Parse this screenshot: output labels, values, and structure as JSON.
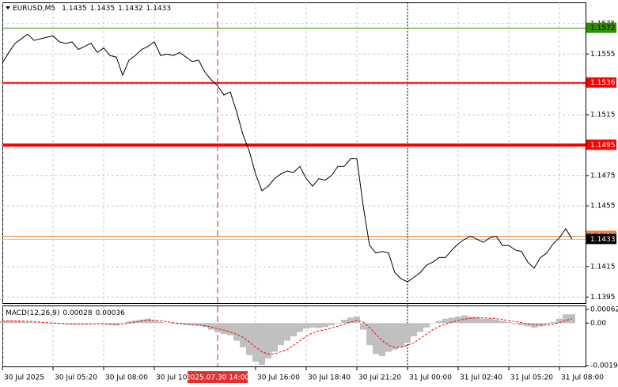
{
  "chart_data": {
    "type": "line",
    "title": "EURUSD,M5",
    "ohlc": [
      1.1435,
      1.1435,
      1.1432,
      1.1433
    ],
    "color": "#000000",
    "grid": true,
    "categories": [
      "30 Jul 2025",
      null,
      null,
      null,
      null,
      null,
      null,
      null,
      "30 Jul 05:20",
      null,
      null,
      null,
      null,
      null,
      null,
      null,
      "30 Jul 08:00",
      null,
      null,
      null,
      null,
      null,
      null,
      null,
      "30 Jul 10:40",
      null,
      null,
      null,
      null,
      null,
      null,
      null,
      null,
      null,
      "2025.07.30 14:00",
      null,
      null,
      null,
      null,
      null,
      "30 Jul 16:00",
      null,
      null,
      null,
      null,
      null,
      null,
      null,
      "30 Jul 18:40",
      null,
      null,
      null,
      null,
      null,
      null,
      null,
      "30 Jul 21:20",
      null,
      null,
      null,
      null,
      null,
      null,
      null,
      "31 Jul 00:00",
      null,
      null,
      null,
      null,
      null,
      null,
      null,
      "31 Jul 02:40",
      null,
      null,
      null,
      null,
      null,
      null,
      null,
      "31 Jul 05:20",
      null,
      null,
      null,
      null,
      null,
      null,
      null,
      "31 Jul 08:00",
      null,
      null
    ],
    "values": [
      1.1549,
      1.1556,
      1.1562,
      1.1565,
      1.1568,
      1.1564,
      1.1565,
      1.1566,
      1.1567,
      1.1563,
      1.1562,
      1.1563,
      1.1558,
      1.156,
      1.1562,
      1.1556,
      1.1559,
      1.1554,
      1.1553,
      1.1541,
      1.1551,
      1.1554,
      1.1558,
      1.156,
      1.1563,
      1.1554,
      1.1555,
      1.1554,
      1.1556,
      1.1553,
      1.155,
      1.1551,
      1.1543,
      1.1538,
      1.1534,
      1.1528,
      1.153,
      1.1517,
      1.1502,
      1.1491,
      1.1476,
      1.1465,
      1.1468,
      1.1473,
      1.1476,
      1.1478,
      1.1477,
      1.1481,
      1.1473,
      1.1468,
      1.1473,
      1.1472,
      1.1475,
      1.1481,
      1.1481,
      1.1486,
      1.1486,
      1.1455,
      1.1429,
      1.1424,
      1.1425,
      1.1424,
      1.1411,
      1.1407,
      1.1405,
      1.1408,
      1.1411,
      1.1416,
      1.1418,
      1.1421,
      1.1421,
      1.1426,
      1.143,
      1.1433,
      1.1435,
      1.1433,
      1.1431,
      1.1434,
      1.1435,
      1.1429,
      1.1429,
      1.1426,
      1.1425,
      1.1418,
      1.1414,
      1.1421,
      1.1424,
      1.143,
      1.1434,
      1.144,
      1.1433
    ],
    "ylim": [
      1.1391,
      1.1589
    ],
    "yticks": [
      1.1575,
      1.1555,
      1.1535,
      1.1515,
      1.1495,
      1.1475,
      1.1455,
      1.1435,
      1.1415,
      1.1395
    ],
    "levels": [
      {
        "value": 1.1572,
        "color": "#2f8f00",
        "width": 1,
        "text_color": "#000000"
      },
      {
        "value": 1.1536,
        "color": "#ff0000",
        "width": 2,
        "text_color": "#ffffff"
      },
      {
        "value": 1.1495,
        "color": "#ff0000",
        "width": 4,
        "text_color": "#ffffff"
      },
      {
        "value": 1.1435,
        "color": "#f08030",
        "width": 1,
        "text_color": "#ffffff"
      },
      {
        "value": 1.1433,
        "color": "#c0c0c0",
        "width": 1,
        "text_color": "#ffffff",
        "label_color": "#000000"
      }
    ],
    "indicator": {
      "type": "macd",
      "title": "MACD(12,26,9)",
      "readings": [
        0.00028,
        0.00036
      ],
      "ylim": [
        -0.00193,
        0.00062
      ],
      "yticks": [
        0.00062,
        {
          "value": 0,
          "label": "0.00"
        },
        -0.00193
      ],
      "histogram": {
        "color": "#c0c0c0",
        "values": [
          0.0001,
          0.00012,
          0.0001,
          8e-05,
          5e-05,
          3e-05,
          2e-05,
          0,
          -2e-05,
          -3e-05,
          -5e-05,
          -6e-05,
          -5e-05,
          -4e-05,
          -3e-05,
          -2e-05,
          -4e-05,
          -8e-05,
          -0.0001,
          2e-05,
          8e-05,
          0.00012,
          0.00016,
          0.0002,
          0.00012,
          5e-05,
          0,
          -3e-05,
          -5e-05,
          -8e-05,
          -0.0001,
          -0.00012,
          -0.00018,
          -0.0003,
          -0.00042,
          -0.0005,
          -0.00055,
          -0.0008,
          -0.0011,
          -0.00145,
          -0.00175,
          -0.0019,
          -0.0016,
          -0.0013,
          -0.001,
          -0.0008,
          -0.0006,
          -0.0004,
          -0.00025,
          -0.0002,
          -0.00022,
          -0.00018,
          -0.0001,
          0,
          0.00015,
          0.00025,
          0.0003,
          -0.0003,
          -0.001,
          -0.0014,
          -0.0015,
          -0.0013,
          -0.0012,
          -0.0011,
          -0.0009,
          -0.0006,
          -0.0004,
          -0.0002,
          0,
          0.0001,
          0.0002,
          0.00025,
          0.0003,
          0.00035,
          0.0003,
          0.00028,
          0.0002,
          0.0002,
          0.00015,
          0.0001,
          5e-05,
          -5e-05,
          -0.0001,
          -0.00015,
          -0.0002,
          -0.00015,
          -5e-05,
          5e-05,
          0.0002,
          0.0004,
          0.0004
        ]
      },
      "signal": {
        "color": "#ff0000",
        "values": [
          8e-05,
          0.0001,
          0.0001,
          9e-05,
          8e-05,
          6e-05,
          4e-05,
          2e-05,
          0,
          -1e-05,
          -3e-05,
          -4e-05,
          -5e-05,
          -5e-05,
          -4e-05,
          -3e-05,
          -4e-05,
          -5e-05,
          -7e-05,
          -4e-05,
          0,
          5e-05,
          0.0001,
          0.00014,
          0.00013,
          0.0001,
          6e-05,
          2e-05,
          -1e-05,
          -4e-05,
          -7e-05,
          -9e-05,
          -0.00012,
          -0.00018,
          -0.00025,
          -0.00032,
          -0.0004,
          -0.0005,
          -0.00065,
          -0.00085,
          -0.0011,
          -0.0013,
          -0.0014,
          -0.0014,
          -0.0013,
          -0.0012,
          -0.001,
          -0.0008,
          -0.0006,
          -0.00045,
          -0.00035,
          -0.0003,
          -0.00022,
          -0.00015,
          -5e-05,
          5e-05,
          0.00012,
          5e-05,
          -0.0002,
          -0.0005,
          -0.0008,
          -0.001,
          -0.0011,
          -0.0011,
          -0.001,
          -0.0009,
          -0.0007,
          -0.0005,
          -0.0003,
          -0.00015,
          -5e-05,
          5e-05,
          0.00012,
          0.00018,
          0.00022,
          0.00024,
          0.00024,
          0.00022,
          0.0002,
          0.00016,
          0.00012,
          7e-05,
          2e-05,
          -3e-05,
          -7e-05,
          -9e-05,
          -8e-05,
          -5e-05,
          2e-05,
          0.00012,
          0.0002
        ]
      }
    }
  }
}
